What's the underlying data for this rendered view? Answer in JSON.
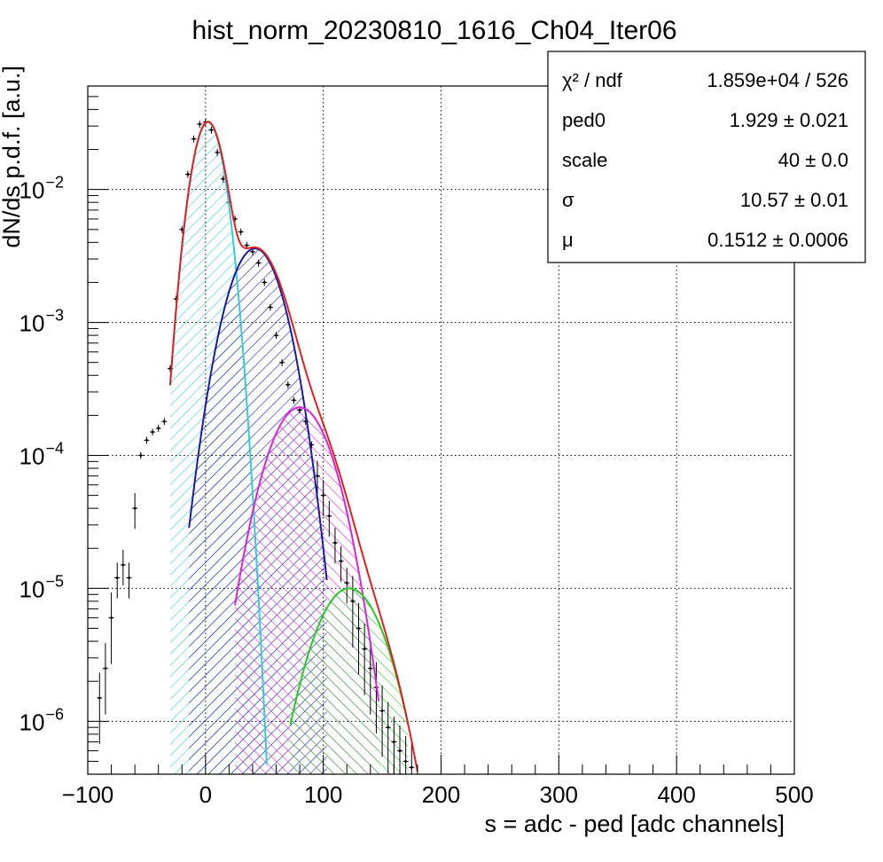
{
  "chart_data": {
    "type": "histogram-fit",
    "title": "hist_norm_20230810_1616_Ch04_Iter06",
    "xlabel": "s = adc - ped [adc channels]",
    "ylabel": "dN/ds p.d.f. [a.u.]",
    "xlim": [
      -100,
      500
    ],
    "ylim": [
      4e-07,
      0.06
    ],
    "ylog": true,
    "grid": true,
    "x_ticks": [
      {
        "value": -100,
        "label": "−100"
      },
      {
        "value": 0,
        "label": "0"
      },
      {
        "value": 100,
        "label": "100"
      },
      {
        "value": 200,
        "label": "200"
      },
      {
        "value": 300,
        "label": "300"
      },
      {
        "value": 400,
        "label": "400"
      },
      {
        "value": 500,
        "label": "500"
      }
    ],
    "y_ticks": [
      {
        "value": 1e-06,
        "base": "10",
        "exp": "−6"
      },
      {
        "value": 1e-05,
        "base": "10",
        "exp": "−5"
      },
      {
        "value": 0.0001,
        "base": "10",
        "exp": "−4"
      },
      {
        "value": 0.001,
        "base": "10",
        "exp": "−3"
      },
      {
        "value": 0.01,
        "base": "10",
        "exp": "−2"
      }
    ],
    "stats_box": {
      "position": "top-right",
      "rows": [
        {
          "label": "χ² / ndf",
          "value": "1.859e+04 / 526"
        },
        {
          "label": "ped0",
          "value": "1.929 ± 0.021"
        },
        {
          "label": "scale",
          "value": "40 ± 0.0"
        },
        {
          "label": "σ",
          "value": "10.57 ± 0.01"
        },
        {
          "label": "μ",
          "value": "0.1512 ± 0.0006"
        }
      ]
    },
    "data_points": {
      "x": [
        -90,
        -85,
        -80,
        -75,
        -70,
        -65,
        -60,
        -55,
        -50,
        -45,
        -40,
        -35,
        -30,
        -25,
        -20,
        -15,
        -10,
        -5,
        0,
        5,
        10,
        15,
        20,
        25,
        30,
        35,
        40,
        45,
        50,
        55,
        60,
        65,
        70,
        75,
        80,
        85,
        90,
        95,
        100,
        105,
        110,
        115,
        120,
        125,
        130,
        135,
        140,
        145,
        150,
        155,
        160,
        165,
        170,
        175
      ],
      "y": [
        1.5e-06,
        2.5e-06,
        6e-06,
        1.2e-05,
        1.5e-05,
        1.2e-05,
        4e-05,
        0.0001,
        0.00013,
        0.00015,
        0.00016,
        0.00018,
        0.00045,
        0.0015,
        0.005,
        0.013,
        0.024,
        0.031,
        0.032,
        0.028,
        0.019,
        0.012,
        0.008,
        0.006,
        0.0048,
        0.0038,
        0.0034,
        0.0028,
        0.002,
        0.0013,
        0.0008,
        0.0005,
        0.00034,
        0.00026,
        0.00022,
        0.00018,
        0.00012,
        7e-05,
        5e-05,
        3.5e-05,
        2.2e-05,
        1.6e-05,
        1.1e-05,
        8e-06,
        5e-06,
        3.5e-06,
        2.5e-06,
        1.8e-06,
        1.2e-06,
        9e-07,
        7e-07,
        6e-07,
        5e-07,
        4.5e-07
      ]
    },
    "components": [
      {
        "color": "#33ccdd",
        "amplitude": 0.032,
        "mean": 2,
        "sigma": 10.6,
        "xmin": -30,
        "xmax": 52
      },
      {
        "color": "#1a1aa8",
        "amplitude": 0.0036,
        "mean": 42,
        "sigma": 18.0,
        "xmin": -14,
        "xmax": 103
      },
      {
        "color": "#dd22dd",
        "amplitude": 0.00023,
        "mean": 80,
        "sigma": 21.0,
        "xmin": 25,
        "xmax": 147
      },
      {
        "color": "#22cc22",
        "amplitude": 1e-05,
        "mean": 122,
        "sigma": 23.0,
        "xmin": 72,
        "xmax": 172
      }
    ],
    "total_fit": {
      "color": "#e02020",
      "xmin": -30,
      "xmax": 180
    },
    "colors": {
      "axis": "#000000",
      "data": "#000000"
    }
  }
}
